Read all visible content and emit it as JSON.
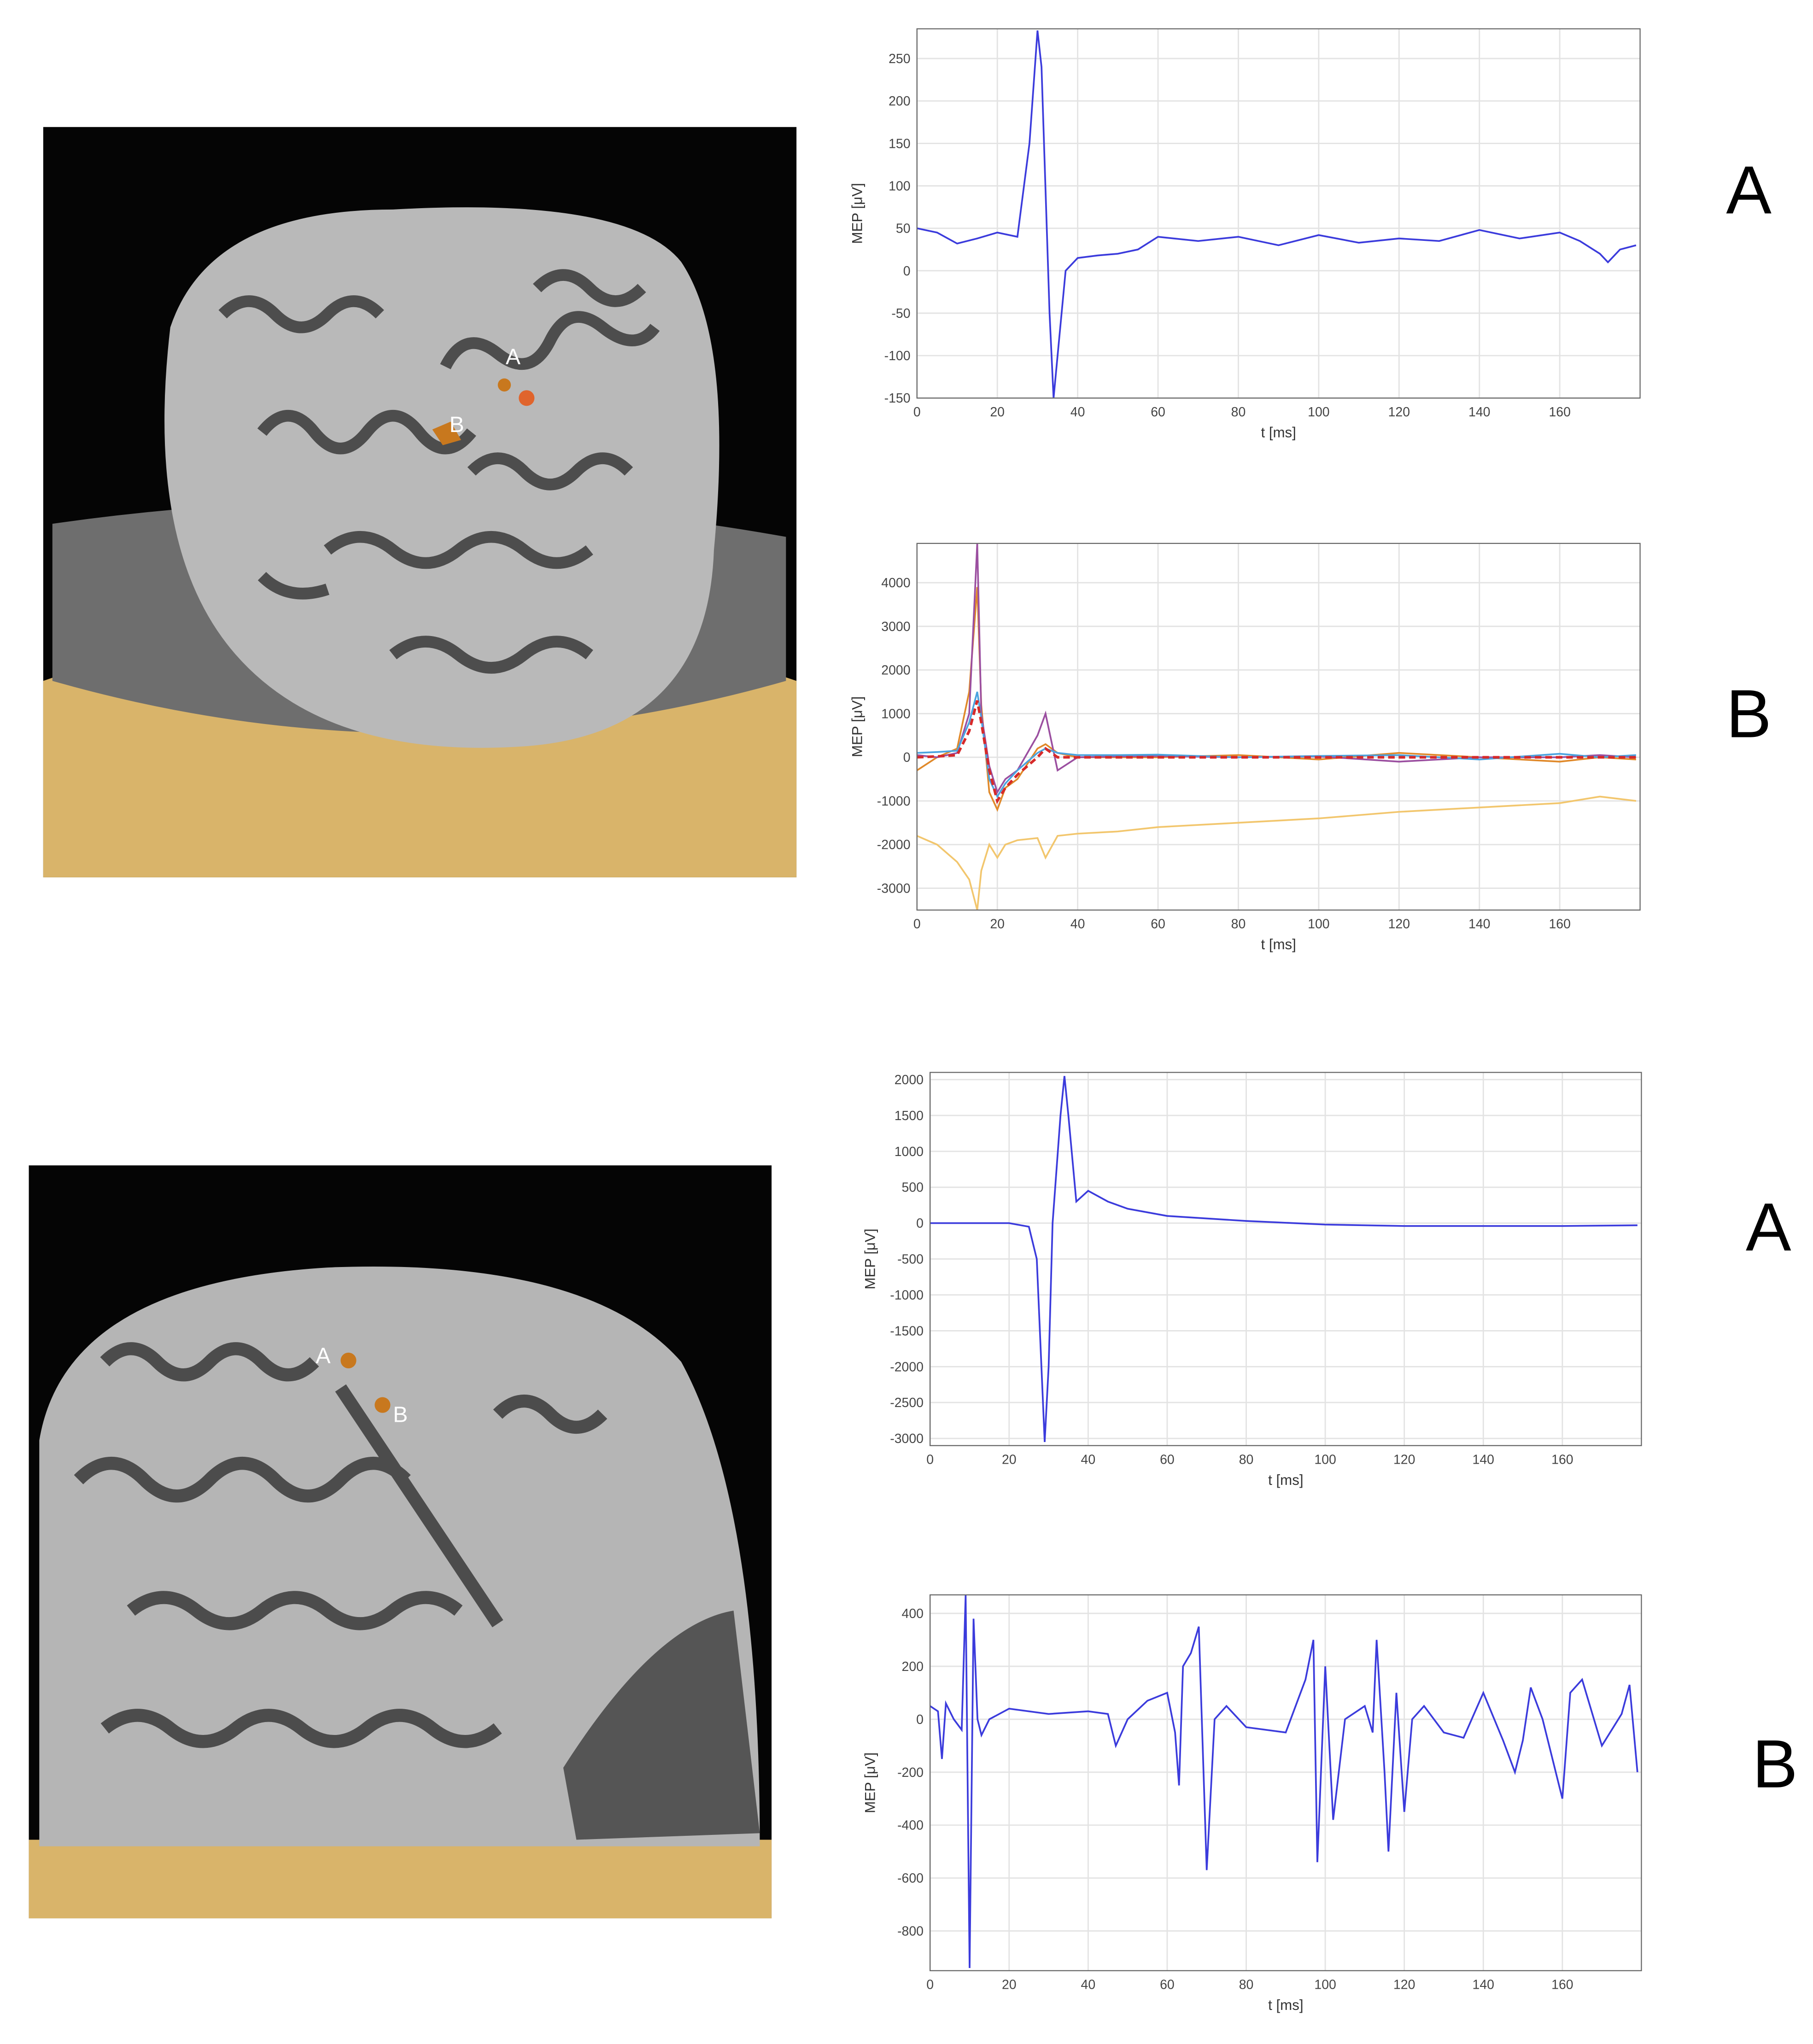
{
  "chart_data": [
    {
      "type": "line",
      "panel_label": "A",
      "xlabel": "t [ms]",
      "ylabel": "MEP [μV]",
      "grid": true,
      "xlim": [
        0,
        180
      ],
      "xticks": [
        0,
        20,
        40,
        60,
        80,
        100,
        120,
        140,
        160
      ],
      "ylim": [
        -150,
        285
      ],
      "yticks": [
        -150,
        -100,
        -50,
        0,
        50,
        100,
        150,
        200,
        250
      ],
      "x": [
        0,
        5,
        10,
        15,
        20,
        25,
        28,
        30,
        31,
        33,
        34,
        35,
        37,
        40,
        45,
        50,
        55,
        60,
        70,
        80,
        90,
        100,
        110,
        120,
        130,
        140,
        150,
        160,
        165,
        170,
        172,
        175,
        179
      ],
      "series": [
        {
          "color": "#3b3bdc",
          "values": [
            50,
            45,
            32,
            38,
            45,
            40,
            150,
            283,
            240,
            -50,
            -150,
            -100,
            0,
            15,
            18,
            20,
            25,
            40,
            35,
            40,
            30,
            42,
            33,
            38,
            35,
            48,
            38,
            45,
            35,
            20,
            10,
            25,
            30
          ]
        }
      ]
    },
    {
      "type": "line",
      "panel_label": "B",
      "xlabel": "t [ms]",
      "ylabel": "MEP [μV]",
      "grid": true,
      "xlim": [
        0,
        180
      ],
      "xticks": [
        0,
        20,
        40,
        60,
        80,
        100,
        120,
        140,
        160
      ],
      "ylim": [
        -3500,
        4900
      ],
      "yticks": [
        -3000,
        -2000,
        -1000,
        0,
        1000,
        2000,
        3000,
        4000
      ],
      "x": [
        0,
        5,
        10,
        13,
        15,
        16,
        18,
        20,
        22,
        25,
        30,
        32,
        35,
        40,
        50,
        60,
        80,
        100,
        120,
        140,
        160,
        170,
        179
      ],
      "series": [
        {
          "color": "#f2c66d",
          "values": [
            -1800,
            -2000,
            -2400,
            -2800,
            -3500,
            -2600,
            -2000,
            -2300,
            -2000,
            -1900,
            -1850,
            -2300,
            -1800,
            -1750,
            -1700,
            -1600,
            -1500,
            -1400,
            -1250,
            -1150,
            -1050,
            -900,
            -1000
          ]
        },
        {
          "color": "#e0892a",
          "values": [
            -300,
            0,
            200,
            1500,
            3900,
            1200,
            -800,
            -1200,
            -700,
            -500,
            200,
            300,
            100,
            0,
            0,
            0,
            50,
            -50,
            100,
            0,
            -100,
            0,
            -50
          ]
        },
        {
          "color": "#9b4fa0",
          "values": [
            50,
            0,
            100,
            1000,
            4900,
            1000,
            -200,
            -800,
            -500,
            -300,
            500,
            1000,
            -300,
            0,
            20,
            30,
            0,
            20,
            -100,
            0,
            0,
            50,
            0
          ]
        },
        {
          "color": "#4aa3df",
          "values": [
            100,
            120,
            150,
            800,
            1500,
            900,
            -500,
            -900,
            -600,
            -300,
            100,
            200,
            100,
            50,
            50,
            60,
            0,
            30,
            50,
            -50,
            80,
            0,
            50
          ]
        },
        {
          "color": "#d62a2a",
          "dashed": true,
          "values": [
            0,
            20,
            50,
            600,
            1300,
            800,
            -300,
            -1000,
            -700,
            -400,
            0,
            200,
            0,
            0,
            0,
            0,
            0,
            0,
            0,
            0,
            0,
            0,
            0
          ]
        }
      ]
    },
    {
      "type": "line",
      "panel_label": "A",
      "xlabel": "t [ms]",
      "ylabel": "MEP [μV]",
      "grid": true,
      "xlim": [
        0,
        180
      ],
      "xticks": [
        0,
        20,
        40,
        60,
        80,
        100,
        120,
        140,
        160
      ],
      "ylim": [
        -3100,
        2100
      ],
      "yticks": [
        -3000,
        -2500,
        -2000,
        -1500,
        -1000,
        -500,
        0,
        500,
        1000,
        1500,
        2000
      ],
      "x": [
        0,
        10,
        20,
        25,
        27,
        29,
        30,
        31,
        33,
        34,
        35,
        37,
        40,
        45,
        50,
        60,
        80,
        100,
        120,
        140,
        160,
        179
      ],
      "series": [
        {
          "color": "#3b3bdc",
          "values": [
            0,
            0,
            0,
            -50,
            -500,
            -3050,
            -2000,
            0,
            1500,
            2050,
            1500,
            300,
            450,
            300,
            200,
            100,
            30,
            -20,
            -40,
            -40,
            -40,
            -30
          ]
        }
      ]
    },
    {
      "type": "line",
      "panel_label": "B",
      "xlabel": "t [ms]",
      "ylabel": "MEP [μV]",
      "grid": true,
      "xlim": [
        0,
        180
      ],
      "xticks": [
        0,
        20,
        40,
        60,
        80,
        100,
        120,
        140,
        160
      ],
      "ylim": [
        -950,
        470
      ],
      "yticks": [
        -800,
        -600,
        -400,
        -200,
        0,
        200,
        400
      ],
      "x": [
        0,
        2,
        3,
        4,
        6,
        8,
        9,
        10,
        11,
        12,
        13,
        15,
        20,
        30,
        40,
        45,
        47,
        50,
        55,
        60,
        62,
        63,
        64,
        66,
        68,
        70,
        72,
        75,
        80,
        90,
        95,
        97,
        98,
        100,
        102,
        105,
        110,
        112,
        113,
        115,
        116,
        118,
        120,
        122,
        125,
        130,
        135,
        140,
        145,
        148,
        150,
        152,
        155,
        160,
        162,
        165,
        170,
        175,
        177,
        179
      ],
      "series": [
        {
          "color": "#3b3bdc",
          "values": [
            50,
            30,
            -150,
            60,
            0,
            -40,
            470,
            -940,
            380,
            0,
            -60,
            0,
            40,
            20,
            30,
            20,
            -100,
            0,
            70,
            100,
            -50,
            -250,
            200,
            250,
            350,
            -570,
            0,
            50,
            -30,
            -50,
            150,
            300,
            -540,
            200,
            -380,
            0,
            50,
            -50,
            300,
            -200,
            -500,
            100,
            -350,
            0,
            50,
            -50,
            -70,
            100,
            -80,
            -200,
            -80,
            120,
            0,
            -300,
            100,
            150,
            -100,
            20,
            130,
            -200
          ]
        }
      ]
    }
  ],
  "brain_images": [
    {
      "labels": [
        "A",
        "B"
      ]
    },
    {
      "labels": [
        "A",
        "B"
      ]
    }
  ]
}
